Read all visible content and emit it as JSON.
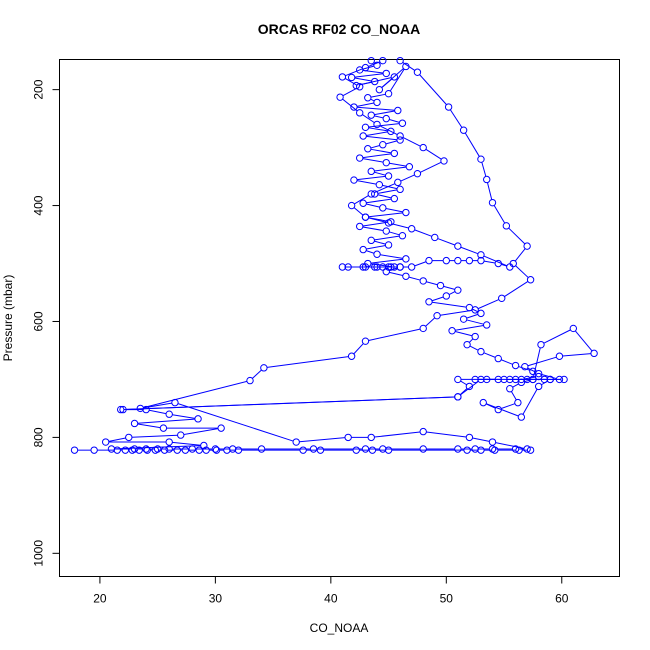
{
  "chart_data": {
    "type": "scatter",
    "title": "ORCAS RF02 CO_NOAA",
    "xlabel": "CO_NOAA",
    "ylabel": "Pressure (mbar)",
    "xlim": [
      16.5,
      65
    ],
    "ylim": [
      1040,
      148
    ],
    "y_reversed": true,
    "xticks": [
      "20",
      "30",
      "40",
      "50",
      "60"
    ],
    "yticks": [
      "200",
      "400",
      "600",
      "800",
      "1000"
    ],
    "grid": false,
    "legend": "none",
    "color": "#0000ff",
    "series": [
      {
        "style": "line+points",
        "points": [
          [
            43.5,
            150
          ],
          [
            44.0,
            158
          ],
          [
            42.5,
            166
          ],
          [
            44.8,
            172
          ],
          [
            41.8,
            179
          ],
          [
            43.8,
            186
          ],
          [
            42.2,
            193
          ],
          [
            45.5,
            178
          ],
          [
            44.2,
            200
          ],
          [
            46.5,
            160
          ],
          [
            45.0,
            207
          ],
          [
            43.2,
            214
          ],
          [
            44.0,
            222
          ],
          [
            42.0,
            230
          ],
          [
            45.8,
            236
          ],
          [
            43.5,
            244
          ],
          [
            44.8,
            250
          ],
          [
            46.2,
            258
          ],
          [
            43.0,
            265
          ],
          [
            45.2,
            272
          ],
          [
            42.8,
            280
          ],
          [
            46.0,
            287
          ],
          [
            44.5,
            295
          ],
          [
            43.2,
            302
          ],
          [
            45.5,
            310
          ],
          [
            42.5,
            318
          ],
          [
            44.8,
            326
          ],
          [
            46.8,
            333
          ],
          [
            43.5,
            341
          ],
          [
            45.0,
            349
          ],
          [
            42.0,
            356
          ],
          [
            44.2,
            364
          ],
          [
            46.0,
            372
          ],
          [
            43.8,
            380
          ],
          [
            45.5,
            388
          ],
          [
            42.8,
            396
          ],
          [
            44.5,
            404
          ],
          [
            46.5,
            412
          ],
          [
            43.0,
            420
          ],
          [
            45.2,
            428
          ],
          [
            42.5,
            436
          ],
          [
            44.8,
            444
          ],
          [
            46.2,
            452
          ],
          [
            43.5,
            460
          ],
          [
            45.0,
            468
          ],
          [
            42.8,
            476
          ],
          [
            44.0,
            484
          ],
          [
            46.5,
            492
          ],
          [
            43.2,
            500
          ],
          [
            45.5,
            506
          ],
          [
            41.5,
            506
          ],
          [
            42.8,
            506
          ],
          [
            43.8,
            506
          ],
          [
            44.5,
            506
          ],
          [
            45.2,
            506
          ],
          [
            46.0,
            506
          ],
          [
            44.8,
            514
          ],
          [
            46.5,
            522
          ],
          [
            48.0,
            530
          ],
          [
            49.5,
            538
          ],
          [
            51.0,
            546
          ],
          [
            50.0,
            556
          ],
          [
            48.5,
            566
          ],
          [
            52.0,
            576
          ],
          [
            53.0,
            586
          ],
          [
            51.5,
            596
          ],
          [
            53.5,
            606
          ],
          [
            50.5,
            616
          ],
          [
            52.5,
            626
          ],
          [
            51.8,
            640
          ],
          [
            53.0,
            652
          ],
          [
            54.5,
            664
          ],
          [
            56.0,
            676
          ],
          [
            57.5,
            686
          ],
          [
            58.0,
            695
          ],
          [
            56.5,
            700
          ],
          [
            55.5,
            700
          ],
          [
            57.0,
            700
          ],
          [
            59.0,
            700
          ],
          [
            60.2,
            700
          ],
          [
            52.5,
            700
          ],
          [
            53.5,
            700
          ],
          [
            54.5,
            700
          ],
          [
            51.0,
            700
          ],
          [
            52.0,
            712
          ],
          [
            51.0,
            730
          ],
          [
            22.0,
            752
          ],
          [
            24.0,
            752
          ],
          [
            26.0,
            760
          ],
          [
            28.5,
            768
          ],
          [
            23.0,
            776
          ],
          [
            25.5,
            784
          ],
          [
            30.5,
            784
          ],
          [
            27.0,
            796
          ],
          [
            22.5,
            800
          ],
          [
            20.5,
            808
          ],
          [
            26.0,
            808
          ],
          [
            29.0,
            814
          ],
          [
            21.0,
            820
          ],
          [
            23.0,
            820
          ],
          [
            24.0,
            820
          ],
          [
            25.0,
            820
          ],
          [
            26.0,
            820
          ],
          [
            28.0,
            820
          ],
          [
            30.0,
            820
          ],
          [
            31.5,
            820
          ],
          [
            34.0,
            820
          ],
          [
            38.5,
            820
          ],
          [
            43.0,
            820
          ],
          [
            44.5,
            820
          ],
          [
            48.0,
            820
          ],
          [
            51.0,
            820
          ],
          [
            52.5,
            820
          ],
          [
            54.0,
            820
          ],
          [
            56.0,
            820
          ],
          [
            57.0,
            820
          ],
          [
            54.0,
            808
          ],
          [
            52.0,
            800
          ],
          [
            48.0,
            790
          ],
          [
            43.5,
            800
          ],
          [
            41.5,
            800
          ],
          [
            37.0,
            808
          ],
          [
            26.5,
            740
          ],
          [
            23.5,
            750
          ],
          [
            33.0,
            702
          ],
          [
            34.2,
            680
          ],
          [
            41.8,
            660
          ],
          [
            43.0,
            634
          ],
          [
            48.0,
            612
          ],
          [
            49.2,
            590
          ],
          [
            52.5,
            580
          ],
          [
            54.8,
            560
          ],
          [
            57.3,
            528
          ],
          [
            55.8,
            500
          ],
          [
            57.0,
            470
          ],
          [
            55.2,
            435
          ],
          [
            54.0,
            395
          ],
          [
            53.5,
            355
          ],
          [
            53.0,
            320
          ],
          [
            51.5,
            270
          ],
          [
            50.2,
            230
          ],
          [
            47.5,
            170
          ],
          [
            46.0,
            150
          ]
        ]
      },
      {
        "style": "line+points",
        "points": [
          [
            17.8,
            822
          ],
          [
            19.5,
            822
          ],
          [
            21.5,
            822
          ],
          [
            22.2,
            822
          ],
          [
            22.8,
            822
          ],
          [
            23.4,
            822
          ],
          [
            24.1,
            822
          ],
          [
            24.8,
            822
          ],
          [
            25.6,
            822
          ],
          [
            26.7,
            822
          ],
          [
            27.4,
            822
          ],
          [
            28.6,
            822
          ],
          [
            29.2,
            822
          ],
          [
            30.1,
            822
          ],
          [
            31.0,
            822
          ],
          [
            32.0,
            822
          ],
          [
            37.6,
            822
          ],
          [
            39.1,
            822
          ],
          [
            42.2,
            822
          ],
          [
            43.6,
            822
          ],
          [
            45.0,
            822
          ],
          [
            51.8,
            822
          ],
          [
            53.0,
            822
          ],
          [
            54.2,
            822
          ],
          [
            56.3,
            822
          ],
          [
            57.3,
            822
          ]
        ]
      },
      {
        "style": "line+points",
        "points": [
          [
            41.0,
            506
          ],
          [
            43.0,
            506
          ],
          [
            44.0,
            506
          ],
          [
            45.0,
            506
          ],
          [
            46.0,
            506
          ],
          [
            47.0,
            506
          ],
          [
            48.5,
            495
          ],
          [
            50.0,
            495
          ],
          [
            51.0,
            495
          ],
          [
            52.0,
            495
          ],
          [
            53.0,
            495
          ],
          [
            54.5,
            500
          ],
          [
            55.5,
            506
          ],
          [
            53.0,
            485
          ],
          [
            51.0,
            470
          ],
          [
            49.0,
            455
          ],
          [
            47.0,
            440
          ],
          [
            45.0,
            430
          ],
          [
            43.0,
            420
          ],
          [
            41.8,
            400
          ],
          [
            43.5,
            380
          ],
          [
            45.8,
            360
          ],
          [
            47.5,
            345
          ],
          [
            49.8,
            323
          ],
          [
            48.0,
            300
          ],
          [
            46.0,
            280
          ],
          [
            44.0,
            260
          ],
          [
            42.5,
            240
          ],
          [
            40.8,
            213
          ],
          [
            42.5,
            195
          ],
          [
            41.0,
            178
          ],
          [
            43.0,
            162
          ],
          [
            44.5,
            150
          ]
        ]
      },
      {
        "style": "line+points",
        "points": [
          [
            21.8,
            752
          ],
          [
            51.0,
            730
          ],
          [
            53.0,
            700
          ],
          [
            55.0,
            700
          ],
          [
            56.0,
            700
          ],
          [
            57.5,
            700
          ],
          [
            58.5,
            700
          ],
          [
            59.8,
            700
          ],
          [
            58.0,
            690
          ],
          [
            56.8,
            678
          ],
          [
            59.8,
            660
          ],
          [
            62.8,
            655
          ],
          [
            61.0,
            612
          ],
          [
            58.2,
            640
          ],
          [
            57.5,
            700
          ],
          [
            56.5,
            705
          ],
          [
            55.5,
            716
          ],
          [
            56.2,
            740
          ],
          [
            54.5,
            752
          ],
          [
            53.2,
            740
          ],
          [
            56.5,
            765
          ],
          [
            58.0,
            712
          ],
          [
            59.0,
            700
          ]
        ]
      }
    ]
  }
}
